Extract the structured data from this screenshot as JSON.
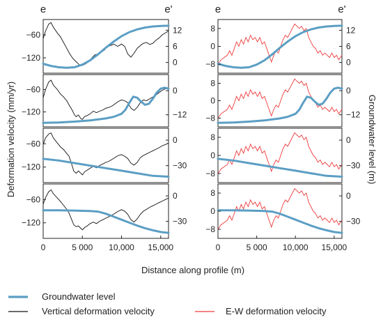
{
  "labels": {
    "profile_start": "e",
    "profile_end": "e'",
    "ylabel_left": "Deformation velocity (mm/yr)",
    "ylabel_right": "Groundwater level (m)",
    "xlabel": "Distance along profile (m)"
  },
  "legend": [
    {
      "label": "Groundwater level",
      "color": "#5b9ec4"
    },
    {
      "label": "Vertical deformation velocity",
      "color": "#111111"
    },
    {
      "label": "E-W deformation velocity",
      "color": "#ee3a3a"
    }
  ],
  "chart_data": {
    "type": "line",
    "x_ticks": [
      0,
      5000,
      10000,
      15000
    ],
    "x_tick_labels": [
      "0",
      "5 000",
      "10,000",
      "15,000"
    ],
    "xlim": [
      0,
      16000
    ],
    "columns": [
      {
        "column": "left",
        "deformation_series": "Vertical deformation velocity",
        "ylim": [
          -160,
          -20
        ],
        "y_ticks": [
          -60,
          -120
        ]
      },
      {
        "column": "right",
        "deformation_series": "E-W deformation velocity",
        "ylim": [
          -12,
          12
        ],
        "y_ticks": [
          8,
          0,
          -8
        ]
      }
    ],
    "rows": [
      {
        "gw_ticks": [
          12,
          6,
          0
        ],
        "gw_ylim": [
          -4,
          16
        ],
        "groundwater": [
          [
            0,
            -0.5
          ],
          [
            1000,
            -1.3
          ],
          [
            2000,
            -1.8
          ],
          [
            3000,
            -2
          ],
          [
            4000,
            -1.8
          ],
          [
            5000,
            -0.8
          ],
          [
            6000,
            0.8
          ],
          [
            7000,
            3
          ],
          [
            8000,
            5.5
          ],
          [
            9000,
            7.8
          ],
          [
            10000,
            9.8
          ],
          [
            11000,
            11.3
          ],
          [
            12000,
            12.3
          ],
          [
            13000,
            13
          ],
          [
            14000,
            13.4
          ],
          [
            15000,
            13.6
          ],
          [
            16000,
            13.7
          ]
        ]
      },
      {
        "gw_ticks": [
          0,
          -12
        ],
        "gw_ylim": [
          -18,
          8
        ],
        "groundwater": [
          [
            0,
            -16
          ],
          [
            2000,
            -15.8
          ],
          [
            4000,
            -15.4
          ],
          [
            6000,
            -14.8
          ],
          [
            8000,
            -13.8
          ],
          [
            9000,
            -13
          ],
          [
            10000,
            -11.5
          ],
          [
            10500,
            -9.5
          ],
          [
            11000,
            -6
          ],
          [
            11500,
            -3
          ],
          [
            12000,
            -3.5
          ],
          [
            12500,
            -5.5
          ],
          [
            13000,
            -7
          ],
          [
            13500,
            -6.5
          ],
          [
            14000,
            -4
          ],
          [
            14500,
            -1
          ],
          [
            15000,
            1
          ],
          [
            15500,
            1.5
          ],
          [
            16000,
            1
          ]
        ]
      },
      {
        "gw_ticks": [
          0,
          -30
        ],
        "gw_ylim": [
          -50,
          14
        ],
        "groundwater": [
          [
            0,
            -22
          ],
          [
            2000,
            -24
          ],
          [
            4000,
            -27
          ],
          [
            6000,
            -30
          ],
          [
            8000,
            -33
          ],
          [
            10000,
            -36
          ],
          [
            12000,
            -39
          ],
          [
            14000,
            -42
          ],
          [
            16000,
            -43
          ]
        ]
      },
      {
        "gw_ticks": [
          0,
          -30
        ],
        "gw_ylim": [
          -50,
          14
        ],
        "groundwater": [
          [
            0,
            -17
          ],
          [
            2000,
            -17
          ],
          [
            4000,
            -17.3
          ],
          [
            6000,
            -17.8
          ],
          [
            7000,
            -18.5
          ],
          [
            8000,
            -21
          ],
          [
            9000,
            -24.5
          ],
          [
            10000,
            -28
          ],
          [
            11000,
            -31.5
          ],
          [
            12000,
            -35
          ],
          [
            13000,
            -38
          ],
          [
            14000,
            -40.5
          ],
          [
            15000,
            -42.5
          ],
          [
            16000,
            -43.5
          ]
        ]
      }
    ],
    "vertical_deformation": [
      [
        [
          0,
          -70
        ],
        [
          300,
          -50
        ],
        [
          700,
          -32
        ],
        [
          1000,
          -28
        ],
        [
          1300,
          -40
        ],
        [
          1800,
          -55
        ],
        [
          2200,
          -65
        ],
        [
          2600,
          -80
        ],
        [
          3000,
          -95
        ],
        [
          3400,
          -110
        ],
        [
          3800,
          -122
        ],
        [
          4200,
          -130
        ],
        [
          4600,
          -138
        ],
        [
          5000,
          -140
        ],
        [
          5400,
          -136
        ],
        [
          5800,
          -130
        ],
        [
          6200,
          -120
        ],
        [
          6600,
          -112
        ],
        [
          7000,
          -110
        ],
        [
          7400,
          -105
        ],
        [
          7800,
          -100
        ],
        [
          8200,
          -90
        ],
        [
          8600,
          -88
        ],
        [
          9000,
          -84
        ],
        [
          9500,
          -90
        ],
        [
          10000,
          -84
        ],
        [
          10400,
          -90
        ],
        [
          10800,
          -110
        ],
        [
          11200,
          -118
        ],
        [
          11600,
          -108
        ],
        [
          12000,
          -95
        ],
        [
          12400,
          -88
        ],
        [
          12800,
          -82
        ],
        [
          13200,
          -80
        ],
        [
          13600,
          -85
        ],
        [
          14000,
          -82
        ],
        [
          14400,
          -74
        ],
        [
          14800,
          -68
        ],
        [
          15200,
          -60
        ],
        [
          15600,
          -55
        ],
        [
          16000,
          -50
        ]
      ],
      [
        [
          0,
          -82
        ],
        [
          300,
          -60
        ],
        [
          700,
          -40
        ],
        [
          1000,
          -35
        ],
        [
          1300,
          -48
        ],
        [
          1800,
          -60
        ],
        [
          2200,
          -72
        ],
        [
          2600,
          -80
        ],
        [
          3000,
          -90
        ],
        [
          3400,
          -105
        ],
        [
          3700,
          -115
        ],
        [
          4000,
          -128
        ],
        [
          4200,
          -133
        ],
        [
          4500,
          -128
        ],
        [
          4800,
          -138
        ],
        [
          5000,
          -140
        ],
        [
          5300,
          -132
        ],
        [
          5600,
          -130
        ],
        [
          6000,
          -125
        ],
        [
          6400,
          -118
        ],
        [
          6800,
          -122
        ],
        [
          7200,
          -118
        ],
        [
          7600,
          -115
        ],
        [
          8000,
          -110
        ],
        [
          8400,
          -108
        ],
        [
          8800,
          -104
        ],
        [
          9200,
          -98
        ],
        [
          9600,
          -92
        ],
        [
          10000,
          -88
        ],
        [
          10400,
          -90
        ],
        [
          10800,
          -95
        ],
        [
          11200,
          -110
        ],
        [
          11600,
          -116
        ],
        [
          12000,
          -108
        ],
        [
          12400,
          -95
        ],
        [
          12800,
          -88
        ],
        [
          13200,
          -90
        ],
        [
          13600,
          -85
        ],
        [
          14000,
          -80
        ],
        [
          14400,
          -75
        ],
        [
          14800,
          -68
        ],
        [
          15200,
          -62
        ],
        [
          15600,
          -58
        ],
        [
          16000,
          -55
        ]
      ],
      [
        [
          0,
          -62
        ],
        [
          300,
          -45
        ],
        [
          700,
          -35
        ],
        [
          1000,
          -32
        ],
        [
          1300,
          -45
        ],
        [
          1800,
          -58
        ],
        [
          2200,
          -68
        ],
        [
          2600,
          -75
        ],
        [
          3000,
          -85
        ],
        [
          3300,
          -92
        ],
        [
          3600,
          -110
        ],
        [
          3900,
          -130
        ],
        [
          4200,
          -136
        ],
        [
          4500,
          -130
        ],
        [
          4800,
          -136
        ],
        [
          5000,
          -140
        ],
        [
          5300,
          -132
        ],
        [
          5600,
          -128
        ],
        [
          6000,
          -123
        ],
        [
          6400,
          -118
        ],
        [
          6800,
          -122
        ],
        [
          7200,
          -116
        ],
        [
          7600,
          -112
        ],
        [
          8000,
          -108
        ],
        [
          8400,
          -105
        ],
        [
          8800,
          -100
        ],
        [
          9200,
          -95
        ],
        [
          9600,
          -90
        ],
        [
          10000,
          -88
        ],
        [
          10400,
          -92
        ],
        [
          10800,
          -98
        ],
        [
          11200,
          -110
        ],
        [
          11600,
          -115
        ],
        [
          12000,
          -108
        ],
        [
          12400,
          -96
        ],
        [
          12800,
          -90
        ],
        [
          13200,
          -86
        ],
        [
          13600,
          -82
        ],
        [
          14000,
          -78
        ],
        [
          14400,
          -74
        ],
        [
          14800,
          -70
        ],
        [
          15200,
          -65
        ],
        [
          15600,
          -62
        ],
        [
          16000,
          -58
        ]
      ],
      [
        [
          0,
          -72
        ],
        [
          300,
          -55
        ],
        [
          700,
          -40
        ],
        [
          1000,
          -35
        ],
        [
          1300,
          -45
        ],
        [
          1800,
          -56
        ],
        [
          2200,
          -65
        ],
        [
          2600,
          -75
        ],
        [
          3000,
          -85
        ],
        [
          3300,
          -95
        ],
        [
          3600,
          -110
        ],
        [
          3900,
          -125
        ],
        [
          4200,
          -130
        ],
        [
          4500,
          -128
        ],
        [
          4800,
          -134
        ],
        [
          5000,
          -138
        ],
        [
          5300,
          -132
        ],
        [
          5600,
          -128
        ],
        [
          6000,
          -122
        ],
        [
          6400,
          -118
        ],
        [
          6800,
          -122
        ],
        [
          7200,
          -116
        ],
        [
          7600,
          -112
        ],
        [
          8000,
          -108
        ],
        [
          8400,
          -104
        ],
        [
          8800,
          -100
        ],
        [
          9200,
          -95
        ],
        [
          9600,
          -90
        ],
        [
          10000,
          -86
        ],
        [
          10400,
          -90
        ],
        [
          10800,
          -98
        ],
        [
          11200,
          -112
        ],
        [
          11600,
          -118
        ],
        [
          12000,
          -110
        ],
        [
          12400,
          -98
        ],
        [
          12800,
          -90
        ],
        [
          13200,
          -85
        ],
        [
          13600,
          -80
        ],
        [
          14000,
          -76
        ],
        [
          14400,
          -72
        ],
        [
          14800,
          -68
        ],
        [
          15200,
          -64
        ],
        [
          15600,
          -60
        ],
        [
          16000,
          -56
        ]
      ]
    ],
    "ew_deformation": [
      [
        0,
        -8
      ],
      [
        400,
        -6
      ],
      [
        800,
        -5
      ],
      [
        1200,
        -4
      ],
      [
        1500,
        -2
      ],
      [
        1800,
        -4
      ],
      [
        2100,
        -1
      ],
      [
        2400,
        2
      ],
      [
        2700,
        0
      ],
      [
        3000,
        3
      ],
      [
        3300,
        1
      ],
      [
        3600,
        4
      ],
      [
        3900,
        2
      ],
      [
        4200,
        5
      ],
      [
        4500,
        3
      ],
      [
        4800,
        4
      ],
      [
        5100,
        2
      ],
      [
        5400,
        4
      ],
      [
        5700,
        1
      ],
      [
        6000,
        2
      ],
      [
        6300,
        -1
      ],
      [
        6600,
        -4
      ],
      [
        6900,
        -7
      ],
      [
        7200,
        -4
      ],
      [
        7500,
        -2
      ],
      [
        7800,
        -3
      ],
      [
        8100,
        0
      ],
      [
        8400,
        3
      ],
      [
        8700,
        5
      ],
      [
        9000,
        4
      ],
      [
        9300,
        6
      ],
      [
        9600,
        8
      ],
      [
        9900,
        10
      ],
      [
        10200,
        9
      ],
      [
        10500,
        8
      ],
      [
        10800,
        9
      ],
      [
        11100,
        7
      ],
      [
        11400,
        8
      ],
      [
        11700,
        4
      ],
      [
        12000,
        2
      ],
      [
        12300,
        0
      ],
      [
        12600,
        -1
      ],
      [
        12900,
        -3
      ],
      [
        13200,
        -2
      ],
      [
        13500,
        -4
      ],
      [
        13800,
        -3
      ],
      [
        14100,
        -4
      ],
      [
        14400,
        -5
      ],
      [
        14700,
        -3
      ],
      [
        15000,
        -5
      ],
      [
        15300,
        -4
      ],
      [
        15600,
        -6
      ],
      [
        16000,
        -4
      ]
    ]
  }
}
